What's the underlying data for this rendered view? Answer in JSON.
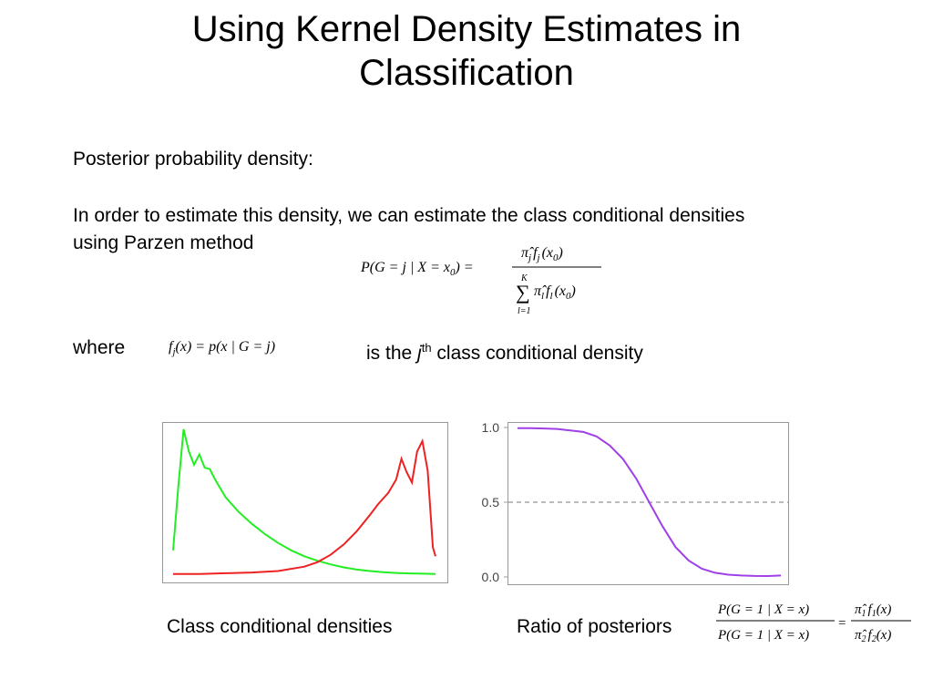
{
  "slide": {
    "title_line1": "Using Kernel Density Estimates in",
    "title_line2": "Classification",
    "posterior_label": "Posterior probability density:",
    "para_line1": "In order to estimate this density, we can estimate the class conditional densities",
    "para_line2": "using Parzen method",
    "where_label": "where",
    "is_the": "is the",
    "j_sym": "j",
    "th_sup": "th",
    "class_cond_text": "class conditional density",
    "caption_left": "Class conditional densities",
    "caption_right": "Ratio of posteriors"
  },
  "equations": {
    "posterior": {
      "lhs": "P(G = j | X = x",
      "lhs_sub": "0",
      "lhs_close": ") =",
      "numerator": "π̂",
      "numerator_rest": "f",
      "numerator_arg": "(x",
      "denominator_sum_top": "K",
      "denominator_sum_bottom": "l=1",
      "denominator_rest": "π̂"
    },
    "fj_def": "f",
    "fj_def_sub": "j",
    "fj_def_rest": "(x) = p(x | G = j)",
    "ratio": {
      "num_lhs": "P(G = 1 | X = x)",
      "den_lhs": "P(G = 1 | X = x)",
      "num_rhs": "π̂",
      "den_rhs": "π̂"
    }
  },
  "chart_data": [
    {
      "type": "line",
      "title": "",
      "xlabel": "",
      "ylabel": "",
      "series": [
        {
          "color": "#22ee22",
          "x": [
            0.0,
            0.02,
            0.04,
            0.06,
            0.08,
            0.1,
            0.12,
            0.14,
            0.16,
            0.18,
            0.2,
            0.25,
            0.3,
            0.35,
            0.4,
            0.45,
            0.5,
            0.55,
            0.6,
            0.65,
            0.7,
            0.75,
            0.8,
            0.85,
            0.9,
            0.95,
            1.0
          ],
          "y": [
            0.18,
            0.62,
            1.0,
            0.85,
            0.76,
            0.83,
            0.74,
            0.73,
            0.66,
            0.6,
            0.54,
            0.44,
            0.36,
            0.29,
            0.23,
            0.18,
            0.14,
            0.11,
            0.085,
            0.065,
            0.05,
            0.04,
            0.032,
            0.027,
            0.024,
            0.022,
            0.02
          ]
        },
        {
          "color": "#ee2222",
          "x": [
            0.0,
            0.1,
            0.2,
            0.3,
            0.4,
            0.5,
            0.55,
            0.6,
            0.65,
            0.7,
            0.75,
            0.78,
            0.82,
            0.85,
            0.87,
            0.89,
            0.91,
            0.93,
            0.95,
            0.97,
            0.99,
            1.0
          ],
          "y": [
            0.02,
            0.02,
            0.025,
            0.03,
            0.04,
            0.07,
            0.1,
            0.15,
            0.22,
            0.31,
            0.42,
            0.49,
            0.57,
            0.66,
            0.8,
            0.71,
            0.64,
            0.85,
            0.92,
            0.72,
            0.2,
            0.14
          ]
        }
      ]
    },
    {
      "type": "line",
      "title": "",
      "xlabel": "",
      "ylabel": "",
      "ylim": [
        0,
        1
      ],
      "yticks": [
        "0.0",
        "0.5",
        "1.0"
      ],
      "reference_line": 0.5,
      "series": [
        {
          "color": "#a040e8",
          "x": [
            0.0,
            0.05,
            0.1,
            0.15,
            0.2,
            0.25,
            0.3,
            0.35,
            0.4,
            0.45,
            0.5,
            0.55,
            0.6,
            0.65,
            0.7,
            0.75,
            0.8,
            0.85,
            0.9,
            0.95,
            1.0
          ],
          "y": [
            0.995,
            0.995,
            0.993,
            0.99,
            0.98,
            0.97,
            0.94,
            0.88,
            0.79,
            0.66,
            0.5,
            0.34,
            0.2,
            0.11,
            0.055,
            0.028,
            0.015,
            0.01,
            0.007,
            0.006,
            0.01
          ]
        }
      ]
    }
  ]
}
